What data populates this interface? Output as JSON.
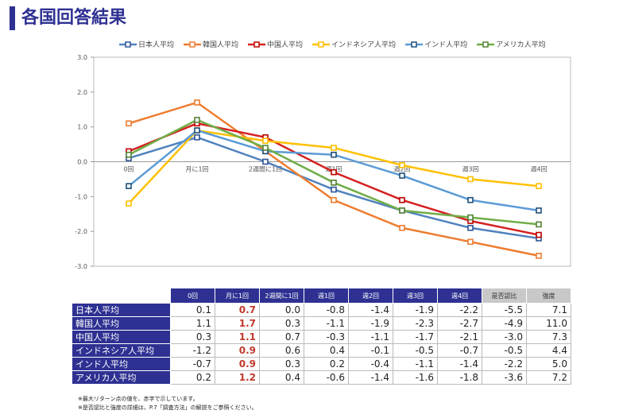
{
  "title": "各国回答結果",
  "chart_data": {
    "type": "line",
    "categories": [
      "0回",
      "月に1回",
      "2週間に1回",
      "週1回",
      "週2回",
      "週3回",
      "週4回"
    ],
    "ylim": [
      -3,
      3
    ],
    "yticks": [
      "3.0",
      "2.0",
      "1.0",
      "0.0",
      "-1.0",
      "-2.0",
      "-3.0"
    ],
    "legend": "top",
    "series": [
      {
        "name": "日本人平均",
        "color": "#4f81bd",
        "marker": "#2f5597",
        "values": [
          0.1,
          0.7,
          0.0,
          -0.8,
          -1.4,
          -1.9,
          -2.2
        ]
      },
      {
        "name": "韓国人平均",
        "color": "#ed7d31",
        "marker": "#ed7d31",
        "values": [
          1.1,
          1.7,
          0.3,
          -1.1,
          -1.9,
          -2.3,
          -2.7
        ]
      },
      {
        "name": "中国人平均",
        "color": "#d42020",
        "marker": "#c00000",
        "values": [
          0.3,
          1.1,
          0.7,
          -0.3,
          -1.1,
          -1.7,
          -2.1
        ]
      },
      {
        "name": "インドネシア人平均",
        "color": "#ffc000",
        "marker": "#ffc000",
        "values": [
          -1.2,
          0.9,
          0.6,
          0.4,
          -0.1,
          -0.5,
          -0.7
        ]
      },
      {
        "name": "インド人平均",
        "color": "#5b9bd5",
        "marker": "#1f4e79",
        "values": [
          -0.7,
          0.9,
          0.3,
          0.2,
          -0.4,
          -1.1,
          -1.4
        ]
      },
      {
        "name": "アメリカ人平均",
        "color": "#70ad47",
        "marker": "#548235",
        "values": [
          0.2,
          1.2,
          0.4,
          -0.6,
          -1.4,
          -1.6,
          -1.8
        ]
      }
    ]
  },
  "table": {
    "headers": [
      "0回",
      "月に1回",
      "2週間に1回",
      "週1回",
      "週2回",
      "週3回",
      "週4回",
      "是否認比",
      "強度"
    ],
    "rows": [
      {
        "label": "日本人平均",
        "cells": [
          "0.1",
          "0.7",
          "0.0",
          "-0.8",
          "-1.4",
          "-1.9",
          "-2.2",
          "-5.5",
          "7.1"
        ]
      },
      {
        "label": "韓国人平均",
        "cells": [
          "1.1",
          "1.7",
          "0.3",
          "-1.1",
          "-1.9",
          "-2.3",
          "-2.7",
          "-4.9",
          "11.0"
        ]
      },
      {
        "label": "中国人平均",
        "cells": [
          "0.3",
          "1.1",
          "0.7",
          "-0.3",
          "-1.1",
          "-1.7",
          "-2.1",
          "-3.0",
          "7.3"
        ]
      },
      {
        "label": "インドネシア人平均",
        "cells": [
          "-1.2",
          "0.9",
          "0.6",
          "0.4",
          "-0.1",
          "-0.5",
          "-0.7",
          "-0.5",
          "4.4"
        ]
      },
      {
        "label": "インド人平均",
        "cells": [
          "-0.7",
          "0.9",
          "0.3",
          "0.2",
          "-0.4",
          "-1.1",
          "-1.4",
          "-2.2",
          "5.0"
        ]
      },
      {
        "label": "アメリカ人平均",
        "cells": [
          "0.2",
          "1.2",
          "0.4",
          "-0.6",
          "-1.4",
          "-1.6",
          "-1.8",
          "-3.6",
          "7.2"
        ]
      }
    ],
    "highlight_color": "#c0392b"
  },
  "footnotes": [
    "※最大リターン点の値を、赤字で示しています。",
    "※是否認比と強度の詳細は、P.7「調査方法」の解説をご参照ください。"
  ]
}
